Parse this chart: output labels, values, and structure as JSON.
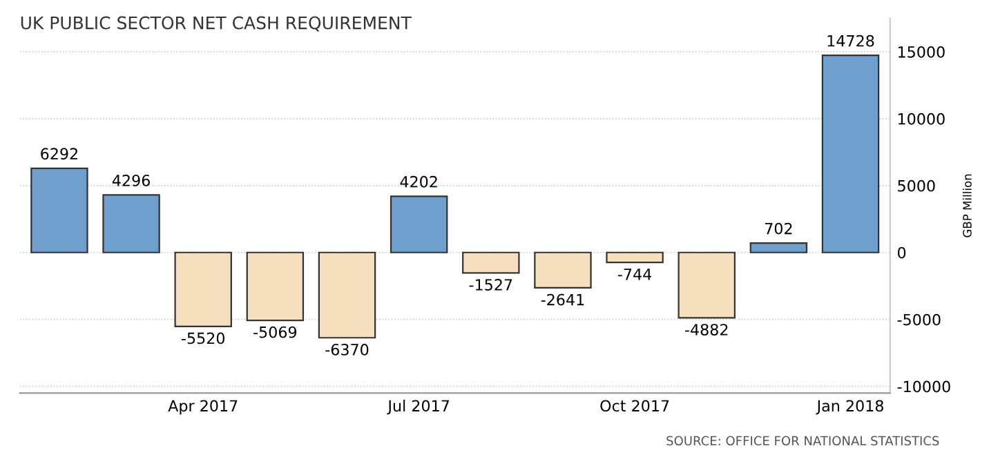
{
  "chart_data": {
    "type": "bar",
    "title": "UK PUBLIC SECTOR NET CASH REQUIREMENT",
    "ylabel": "GBP Million",
    "categories": [
      null,
      null,
      "Apr 2017",
      null,
      null,
      "Jul 2017",
      null,
      null,
      "Oct 2017",
      null,
      null,
      "Jan 2018"
    ],
    "values": [
      6292,
      4296,
      -5520,
      -5069,
      -6370,
      4202,
      -1527,
      -2641,
      -744,
      -4882,
      702,
      14728
    ],
    "colors": [
      "#6f9fcc",
      "#6f9fcc",
      "#f5dfbd",
      "#f5dfbd",
      "#f5dfbd",
      "#6f9fcc",
      "#f5dfbd",
      "#f5dfbd",
      "#f5dfbd",
      "#f5dfbd",
      "#6f9fcc",
      "#6f9fcc"
    ],
    "data_labels": true,
    "ylim": [
      -10500,
      17500
    ],
    "yticks": [
      -10000,
      -5000,
      0,
      5000,
      10000,
      15000
    ],
    "grid": "y",
    "annotations": [
      "SOURCE: OFFICE FOR NATIONAL STATISTICS"
    ]
  }
}
